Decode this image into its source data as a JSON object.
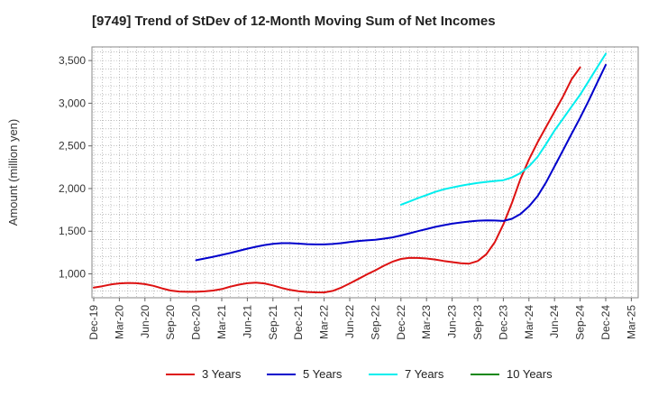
{
  "chart_data": {
    "type": "line",
    "title": "[9749]  Trend of StDev of 12-Month Moving Sum of Net Incomes",
    "ylabel": "Amount (million yen)",
    "xlabel": "",
    "x_ticks": [
      "Dec-19",
      "Mar-20",
      "Jun-20",
      "Sep-20",
      "Dec-20",
      "Mar-21",
      "Jun-21",
      "Sep-21",
      "Dec-21",
      "Mar-22",
      "Jun-22",
      "Sep-22",
      "Dec-22",
      "Mar-23",
      "Jun-23",
      "Sep-23",
      "Dec-23",
      "Mar-24",
      "Jun-24",
      "Sep-24",
      "Dec-24",
      "Mar-25"
    ],
    "y_ticks": [
      "1,000",
      "1,500",
      "2,000",
      "2,500",
      "3,000",
      "3,500"
    ],
    "y_tick_values": [
      1000,
      1500,
      2000,
      2500,
      3000,
      3500
    ],
    "ylim": [
      720,
      3660
    ],
    "grid": true,
    "legend_position": "bottom",
    "series": [
      {
        "name": "3 Years",
        "color": "#dd1111",
        "start_month": 0,
        "values": [
          840,
          855,
          875,
          888,
          893,
          890,
          880,
          860,
          830,
          805,
          793,
          790,
          790,
          795,
          805,
          822,
          850,
          873,
          890,
          897,
          888,
          865,
          835,
          812,
          797,
          788,
          783,
          782,
          800,
          838,
          888,
          940,
          993,
          1042,
          1095,
          1142,
          1175,
          1188,
          1186,
          1180,
          1168,
          1152,
          1138,
          1125,
          1120,
          1150,
          1230,
          1370,
          1580,
          1830,
          2110,
          2340,
          2540,
          2720,
          2900,
          3080,
          3280,
          3420
        ]
      },
      {
        "name": "5 Years",
        "color": "#0000cc",
        "start_month": 12,
        "values": [
          1160,
          1180,
          1200,
          1222,
          1245,
          1270,
          1295,
          1318,
          1338,
          1352,
          1360,
          1360,
          1355,
          1348,
          1345,
          1345,
          1350,
          1360,
          1373,
          1385,
          1393,
          1400,
          1413,
          1428,
          1450,
          1475,
          1500,
          1525,
          1550,
          1570,
          1588,
          1602,
          1614,
          1623,
          1627,
          1625,
          1620,
          1645,
          1700,
          1790,
          1910,
          2070,
          2260,
          2450,
          2640,
          2830,
          3030,
          3240,
          3450
        ]
      },
      {
        "name": "7 Years",
        "color": "#00eeee",
        "start_month": 36,
        "values": [
          1810,
          1848,
          1888,
          1924,
          1960,
          1990,
          2012,
          2032,
          2050,
          2066,
          2078,
          2088,
          2098,
          2130,
          2180,
          2260,
          2370,
          2520,
          2680,
          2820,
          2960,
          3100,
          3260,
          3420,
          3580
        ]
      },
      {
        "name": "10 Years",
        "color": "#118811",
        "start_month": 0,
        "values": []
      }
    ]
  }
}
